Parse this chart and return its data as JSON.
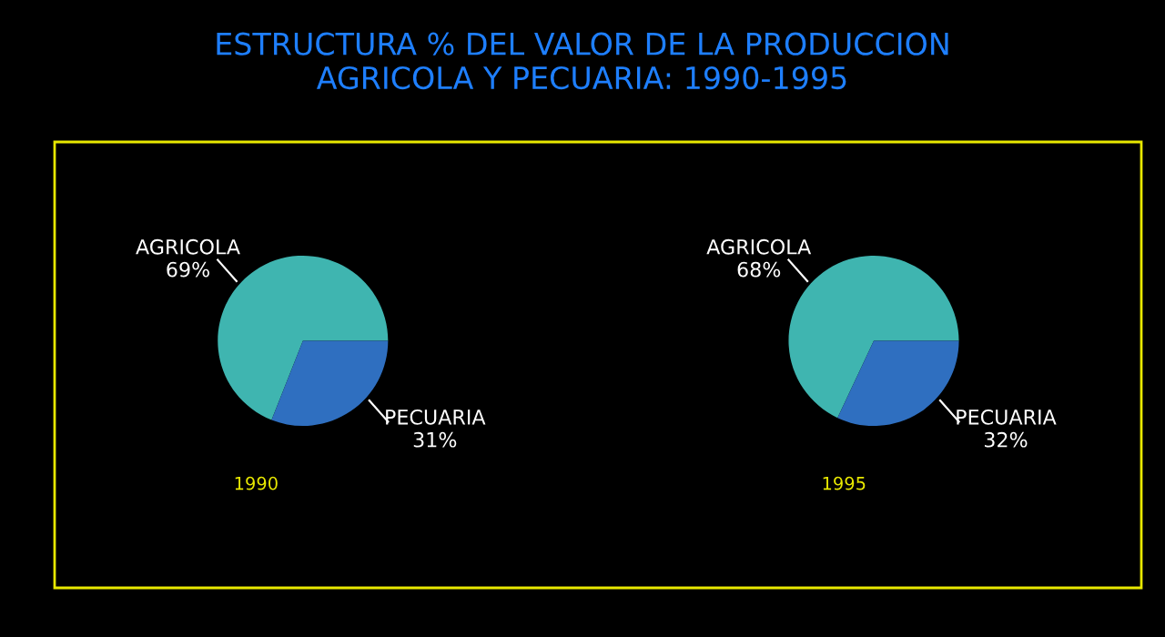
{
  "chart_data": [
    {
      "type": "pie",
      "title": "ESTRUCTURA % DEL VALOR DE LA PRODUCCION\nAGRICOLA Y PECUARIA: 1990-1995",
      "xlabel": "1990",
      "categories": [
        "AGRICOLA",
        "PECUARIA"
      ],
      "values": [
        69,
        31
      ],
      "value_labels": [
        "69%",
        "31%"
      ],
      "colors": [
        "#3fb5b0",
        "#2f6fc0"
      ]
    },
    {
      "type": "pie",
      "xlabel": "1995",
      "categories": [
        "AGRICOLA",
        "PECUARIA"
      ],
      "values": [
        68,
        32
      ],
      "value_labels": [
        "68%",
        "32%"
      ],
      "colors": [
        "#3fb5b0",
        "#2f6fc0"
      ]
    }
  ]
}
